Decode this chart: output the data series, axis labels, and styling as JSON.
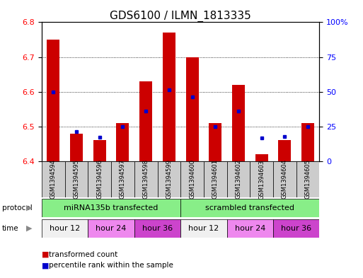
{
  "title": "GDS6100 / ILMN_1813335",
  "samples": [
    "GSM1394594",
    "GSM1394595",
    "GSM1394596",
    "GSM1394597",
    "GSM1394598",
    "GSM1394599",
    "GSM1394600",
    "GSM1394601",
    "GSM1394602",
    "GSM1394603",
    "GSM1394604",
    "GSM1394605"
  ],
  "transformed_count": [
    6.75,
    6.48,
    6.46,
    6.51,
    6.63,
    6.77,
    6.7,
    6.51,
    6.62,
    6.42,
    6.46,
    6.51
  ],
  "percentile_rank": [
    6.6,
    6.485,
    6.47,
    6.5,
    6.545,
    6.605,
    6.585,
    6.5,
    6.545,
    6.468,
    6.472,
    6.5
  ],
  "ylim_left": [
    6.4,
    6.8
  ],
  "ylim_right": [
    0,
    100
  ],
  "yticks_left": [
    6.4,
    6.5,
    6.6,
    6.7,
    6.8
  ],
  "yticks_right": [
    0,
    25,
    50,
    75,
    100
  ],
  "bar_color": "#cc0000",
  "dot_color": "#0000cc",
  "bar_bottom": 6.4,
  "protocol_labels": [
    "miRNA135b transfected",
    "scrambled transfected"
  ],
  "protocol_color": "#88ee88",
  "time_groups": [
    {
      "label": "hour 12",
      "span": [
        0,
        2
      ]
    },
    {
      "label": "hour 24",
      "span": [
        2,
        4
      ]
    },
    {
      "label": "hour 36",
      "span": [
        4,
        6
      ]
    },
    {
      "label": "hour 12",
      "span": [
        6,
        8
      ]
    },
    {
      "label": "hour 24",
      "span": [
        8,
        10
      ]
    },
    {
      "label": "hour 36",
      "span": [
        10,
        12
      ]
    }
  ],
  "time_colors": {
    "hour 12": "#f0f0f0",
    "hour 24": "#ee88ee",
    "hour 36": "#cc44cc"
  },
  "legend_items": [
    {
      "label": "transformed count",
      "color": "#cc0000"
    },
    {
      "label": "percentile rank within the sample",
      "color": "#0000cc"
    }
  ],
  "sample_bg_color": "#cccccc",
  "title_fontsize": 11,
  "tick_fontsize": 8,
  "label_fontsize": 8
}
